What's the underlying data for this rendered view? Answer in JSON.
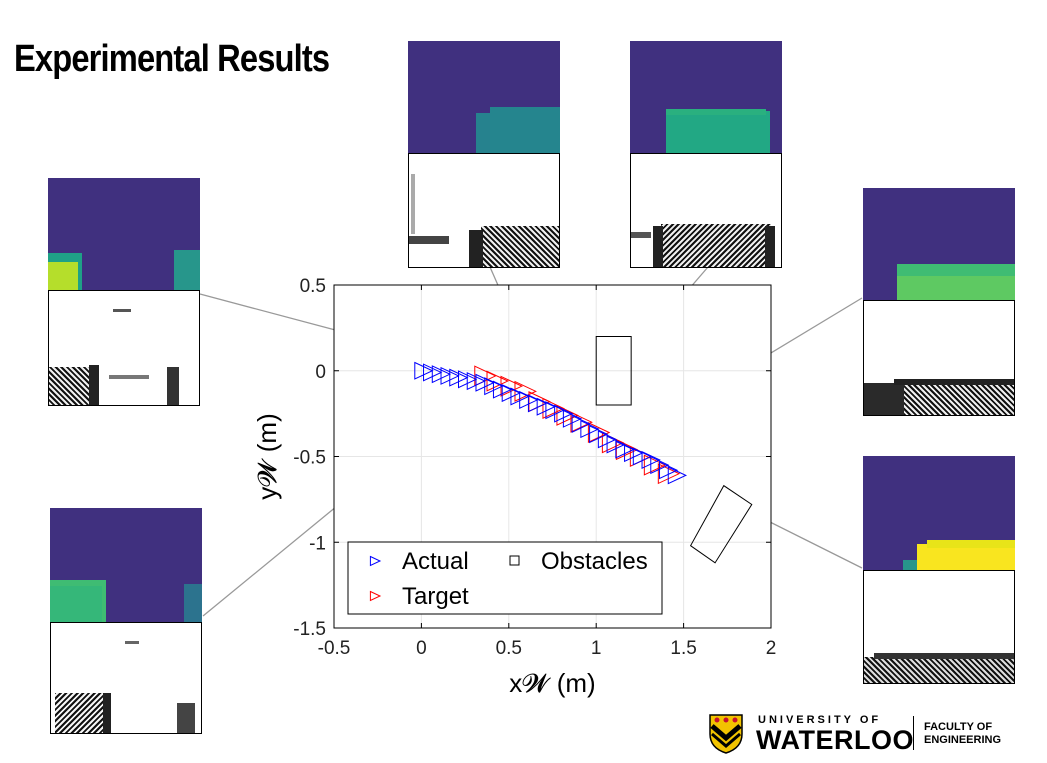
{
  "slide": {
    "title": "Experimental Results"
  },
  "logo": {
    "university_line": "UNIVERSITY OF",
    "university_name": "WATERLOO",
    "faculty_line1": "FACULTY OF",
    "faculty_line2": "ENGINEERING"
  },
  "colors": {
    "actual": "#0000ff",
    "target": "#ff0000",
    "obstacle": "#000000",
    "arrow": "#999999",
    "depth_background": "#40307f",
    "depth_near": "#f9e51f",
    "depth_mid": "#27968b"
  },
  "chart_data": {
    "type": "scatter",
    "xlabel": "x𝓦 (m)",
    "ylabel": "y𝓦 (m)",
    "xlim": [
      -0.5,
      2
    ],
    "ylim": [
      -1.5,
      0.5
    ],
    "xticks": [
      "-0.5",
      "0",
      "0.5",
      "1",
      "1.5",
      "2"
    ],
    "yticks": [
      "0.5",
      "0",
      "-0.5",
      "-1",
      "-1.5"
    ],
    "grid": true,
    "legend_placement": "bottom-left",
    "legend": [
      "Actual",
      "Target",
      "Obstacles"
    ],
    "marker": "right-pointing triangle",
    "series": [
      {
        "name": "Actual",
        "x": [
          0.0,
          0.05,
          0.1,
          0.15,
          0.2,
          0.25,
          0.3,
          0.35,
          0.4,
          0.45,
          0.5,
          0.55,
          0.6,
          0.65,
          0.7,
          0.75,
          0.8,
          0.85,
          0.9,
          0.95,
          1.0,
          1.05,
          1.1,
          1.15,
          1.2,
          1.25,
          1.3,
          1.35,
          1.4,
          1.45
        ],
        "y": [
          0.0,
          -0.01,
          -0.02,
          -0.03,
          -0.04,
          -0.05,
          -0.06,
          -0.07,
          -0.09,
          -0.11,
          -0.13,
          -0.15,
          -0.17,
          -0.19,
          -0.21,
          -0.23,
          -0.25,
          -0.28,
          -0.31,
          -0.34,
          -0.37,
          -0.4,
          -0.43,
          -0.46,
          -0.48,
          -0.5,
          -0.52,
          -0.55,
          -0.58,
          -0.61
        ]
      },
      {
        "name": "Target",
        "x": [
          0.35,
          0.42,
          0.5,
          0.58,
          0.66,
          0.74,
          0.82,
          0.9,
          1.0,
          1.08,
          1.16,
          1.24,
          1.32,
          1.4
        ],
        "y": [
          -0.03,
          -0.06,
          -0.09,
          -0.12,
          -0.18,
          -0.22,
          -0.26,
          -0.3,
          -0.36,
          -0.42,
          -0.46,
          -0.5,
          -0.55,
          -0.6
        ]
      }
    ],
    "obstacles": [
      {
        "name": "Obstacles",
        "corners": [
          [
            1.0,
            0.2
          ],
          [
            1.2,
            0.2
          ],
          [
            1.2,
            -0.2
          ],
          [
            1.0,
            -0.2
          ]
        ]
      },
      {
        "corners": [
          [
            1.54,
            -1.02
          ],
          [
            1.73,
            -0.67
          ],
          [
            1.89,
            -0.78
          ],
          [
            1.68,
            -1.12
          ]
        ]
      }
    ]
  }
}
